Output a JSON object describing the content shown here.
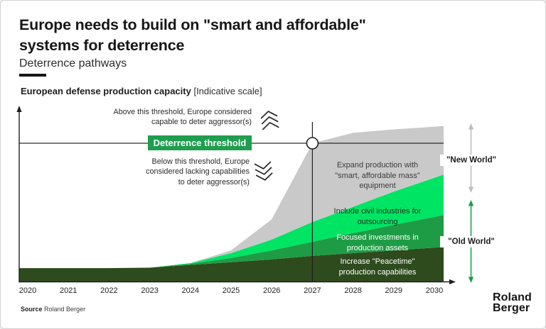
{
  "header": {
    "title_lines": [
      "Europe needs to build on \"smart and affordable\"",
      "systems for deterrence"
    ],
    "subtitle": "Deterrence pathways"
  },
  "chart_header": {
    "bold": "European defense production capacity",
    "normal": "[Indicative scale]"
  },
  "annotations": {
    "above_lines": [
      "Above this threshold, Europe considered",
      "capable to deter aggressor(s)"
    ],
    "below_lines": [
      "Below this threshold, Europe",
      "considered lacking capabilities",
      "to deter aggressor(s)"
    ],
    "threshold_badge": "Deterrence threshold",
    "new_world": "\"New World\"",
    "old_world": "\"Old World\""
  },
  "area_labels": {
    "expand": "Expand production with \"smart, affordable mass\" equipment",
    "civil": "Include civil industries for outsourcing",
    "focused": "Focused investments in production assets",
    "peacetime": "Increase \"Peacetime\" production capabilities"
  },
  "chart_data": {
    "type": "area",
    "stacked": true,
    "title": "European defense production capacity",
    "ylabel": "European defense production capacity [Indicative scale]",
    "xlabel": "",
    "x": [
      2020,
      2021,
      2022,
      2023,
      2024,
      2025,
      2026,
      2027,
      2028,
      2029,
      2030
    ],
    "xlim": [
      2020,
      2030
    ],
    "ylim": [
      0,
      125
    ],
    "grid": false,
    "legend_position": "labels-inside-areas",
    "series": [
      {
        "name": "Increase \"Peacetime\" production capabilities",
        "color": "#2E4B1E",
        "values": [
          9.7,
          9.7,
          9.7,
          10,
          12,
          14,
          16,
          18.5,
          20.5,
          22.5,
          24.5
        ]
      },
      {
        "name": "Focused investments in production assets",
        "color": "#1E9C45",
        "values": [
          0,
          0,
          0,
          0,
          0.8,
          3,
          6.5,
          10.2,
          14.5,
          18.5,
          22.2
        ]
      },
      {
        "name": "Include civil industries for outsourcing",
        "color": "#00E464",
        "values": [
          0,
          0,
          0,
          0,
          0.5,
          3.5,
          7.8,
          14.3,
          19,
          24,
          28.3
        ]
      },
      {
        "name": "Expand production with \"smart, affordable mass\" equipment",
        "color": "#C9C9C9",
        "values": [
          0,
          0,
          0,
          0,
          0,
          2,
          14.7,
          57,
          53.5,
          45,
          37
        ]
      }
    ],
    "threshold": {
      "label": "Deterrence threshold",
      "value": 100,
      "crossing_year": 2027
    }
  },
  "footer": {
    "source_label": "Source",
    "source_value": "Roland Berger",
    "logo_lines": [
      "Roland",
      "Berger"
    ]
  },
  "colors": {
    "dark_green": "#2E4B1E",
    "medium_green": "#1E9C45",
    "bright_green": "#00E464",
    "gray_area": "#C9C9C9",
    "badge_green": "#1E9E4E",
    "old_world_arrow": "#1E9E4E",
    "new_world_arrow": "#BDBDBD"
  }
}
